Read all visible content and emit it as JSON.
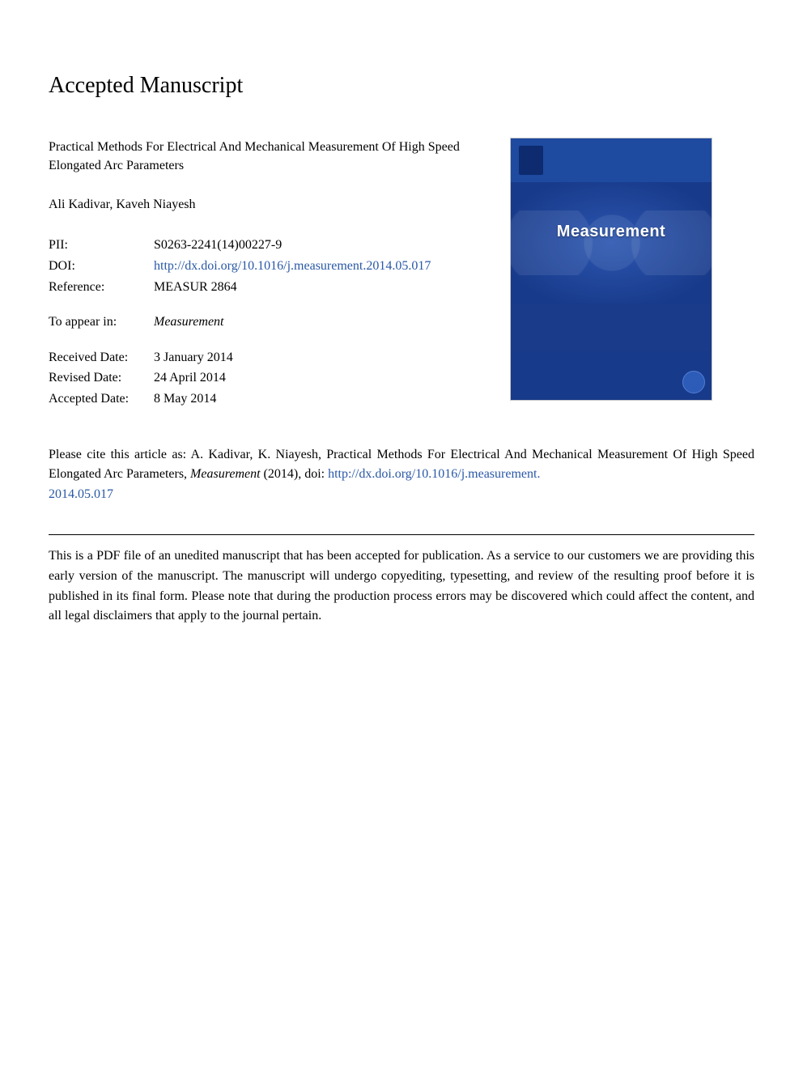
{
  "header": {
    "accepted_label": "Accepted Manuscript"
  },
  "article": {
    "title": "Practical Methods For Electrical And Mechanical Measurement Of High Speed Elongated Arc Parameters",
    "authors": "Ali Kadivar, Kaveh Niayesh"
  },
  "meta": {
    "pii_label": "PII:",
    "pii_value": "S0263-2241(14)00227-9",
    "doi_label": "DOI:",
    "doi_url": "http://dx.doi.org/10.1016/j.measurement.2014.05.017",
    "reference_label": "Reference:",
    "reference_value": "MEASUR 2864",
    "to_appear_label": "To appear in:",
    "to_appear_value": "Measurement",
    "received_label": "Received Date:",
    "received_value": "3 January 2014",
    "revised_label": "Revised Date:",
    "revised_value": "24 April 2014",
    "accepted_label": "Accepted Date:",
    "accepted_value": "8 May 2014"
  },
  "cover": {
    "journal_name": "Measurement"
  },
  "citation": {
    "prefix": "Please cite this article as: A. Kadivar, K. Niayesh, Practical Methods For Electrical And Mechanical Measurement Of High Speed Elongated Arc Parameters, ",
    "journal_italic": "Measurement",
    "year_part": " (2014), doi: ",
    "doi_link_1": "http://dx.doi.org/10.1016/j.measurement.",
    "doi_link_2": "2014.05.017"
  },
  "disclaimer": {
    "text": "This is a PDF file of an unedited manuscript that has been accepted for publication. As a service to our customers we are providing this early version of the manuscript. The manuscript will undergo copyediting, typesetting, and review of the resulting proof before it is published in its final form. Please note that during the production process errors may be discovered which could affect the content, and all legal disclaimers that apply to the journal pertain."
  },
  "colors": {
    "link": "#2958a6",
    "cover_bg": "#1a3a8a",
    "cover_top": "#1e4aa0"
  }
}
